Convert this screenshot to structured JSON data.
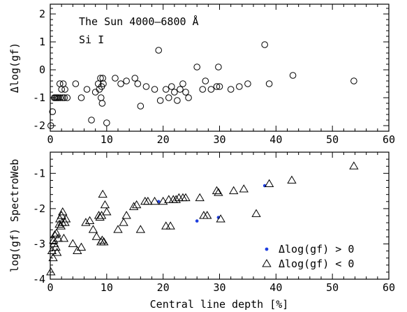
{
  "chart_data": [
    {
      "type": "scatter",
      "panel": "top",
      "annotations": [
        "The Sun  4000–6800 Å",
        "Si I"
      ],
      "xlabel": "",
      "ylabel": "Δlog(gf)",
      "xlim": [
        0,
        60
      ],
      "ylim": [
        -2.2,
        2.35
      ],
      "xticks": [
        0,
        10,
        20,
        30,
        40,
        50,
        60
      ],
      "yticks": [
        -2,
        -1,
        0,
        1,
        2
      ],
      "marker": "open-circle",
      "color": "#000000",
      "points": [
        [
          0.1,
          -2.0
        ],
        [
          0.4,
          -1.5
        ],
        [
          0.7,
          -1.0
        ],
        [
          0.9,
          -1.0
        ],
        [
          1.1,
          -1.0
        ],
        [
          1.3,
          -1.0
        ],
        [
          1.5,
          -1.0
        ],
        [
          1.7,
          -0.5
        ],
        [
          1.8,
          -1.0
        ],
        [
          2.0,
          -0.7
        ],
        [
          2.2,
          -1.0
        ],
        [
          2.3,
          -0.5
        ],
        [
          2.5,
          -1.0
        ],
        [
          2.6,
          -0.7
        ],
        [
          3.0,
          -1.0
        ],
        [
          4.5,
          -0.5
        ],
        [
          5.5,
          -1.0
        ],
        [
          6.5,
          -0.7
        ],
        [
          7.3,
          -1.8
        ],
        [
          8.0,
          -0.8
        ],
        [
          8.5,
          -0.5
        ],
        [
          8.7,
          -0.7
        ],
        [
          8.9,
          -0.3
        ],
        [
          9.0,
          -1.0
        ],
        [
          9.1,
          -0.6
        ],
        [
          9.2,
          -1.2
        ],
        [
          9.3,
          -0.3
        ],
        [
          9.4,
          -0.5
        ],
        [
          10.0,
          -1.9
        ],
        [
          11.5,
          -0.3
        ],
        [
          12.5,
          -0.5
        ],
        [
          13.5,
          -0.4
        ],
        [
          15.0,
          -0.3
        ],
        [
          15.5,
          -0.5
        ],
        [
          16.0,
          -1.3
        ],
        [
          17.0,
          -0.6
        ],
        [
          18.5,
          -0.7
        ],
        [
          19.2,
          0.7
        ],
        [
          19.5,
          -1.1
        ],
        [
          20.5,
          -0.7
        ],
        [
          21.0,
          -1.0
        ],
        [
          21.5,
          -0.6
        ],
        [
          22.0,
          -0.8
        ],
        [
          22.5,
          -1.1
        ],
        [
          23.0,
          -0.7
        ],
        [
          24.0,
          -0.8
        ],
        [
          24.5,
          -1.0
        ],
        [
          23.5,
          -0.5
        ],
        [
          26.0,
          0.1
        ],
        [
          27.0,
          -0.7
        ],
        [
          27.5,
          -0.4
        ],
        [
          28.5,
          -0.7
        ],
        [
          29.5,
          -0.6
        ],
        [
          29.8,
          0.1
        ],
        [
          30.0,
          -0.6
        ],
        [
          32.0,
          -0.7
        ],
        [
          33.5,
          -0.6
        ],
        [
          35.0,
          -0.5
        ],
        [
          38.0,
          0.9
        ],
        [
          38.8,
          -0.5
        ],
        [
          43.0,
          -0.2
        ],
        [
          53.8,
          -0.4
        ]
      ]
    },
    {
      "type": "scatter",
      "panel": "bottom",
      "xlabel": "Central line depth [%]",
      "ylabel": "log(gf) SpectroWeb",
      "xlim": [
        0,
        60
      ],
      "ylim": [
        -4.0,
        -0.4
      ],
      "xticks": [
        0,
        10,
        20,
        30,
        40,
        50,
        60
      ],
      "yticks": [
        -4,
        -3,
        -2,
        -1
      ],
      "legend_position": "bottom-right",
      "series": [
        {
          "name": "Δlog(gf) > 0",
          "marker": "filled-dot",
          "color": "#1f3fe0",
          "points": [
            [
              19.2,
              -1.8
            ],
            [
              26.0,
              -2.35
            ],
            [
              29.8,
              -2.25
            ],
            [
              38.0,
              -1.35
            ]
          ]
        },
        {
          "name": "Δlog(gf) < 0",
          "marker": "open-triangle",
          "color": "#000000",
          "points": [
            [
              0.1,
              -3.8
            ],
            [
              0.3,
              -3.2
            ],
            [
              0.5,
              -3.4
            ],
            [
              0.6,
              -2.9
            ],
            [
              0.7,
              -3.0
            ],
            [
              0.8,
              -2.75
            ],
            [
              1.0,
              -3.1
            ],
            [
              1.1,
              -2.7
            ],
            [
              1.2,
              -3.25
            ],
            [
              1.4,
              -2.85
            ],
            [
              1.6,
              -2.45
            ],
            [
              1.7,
              -2.3
            ],
            [
              1.9,
              -2.5
            ],
            [
              2.0,
              -2.2
            ],
            [
              2.1,
              -2.4
            ],
            [
              2.2,
              -2.1
            ],
            [
              2.4,
              -2.85
            ],
            [
              2.6,
              -2.4
            ],
            [
              2.8,
              -2.3
            ],
            [
              4.0,
              -3.0
            ],
            [
              4.8,
              -3.2
            ],
            [
              5.5,
              -3.1
            ],
            [
              6.3,
              -2.4
            ],
            [
              7.0,
              -2.35
            ],
            [
              7.6,
              -2.6
            ],
            [
              8.2,
              -2.8
            ],
            [
              8.6,
              -2.2
            ],
            [
              8.8,
              -2.25
            ],
            [
              9.0,
              -2.95
            ],
            [
              9.1,
              -2.2
            ],
            [
              9.2,
              -2.9
            ],
            [
              9.3,
              -1.6
            ],
            [
              9.5,
              -2.95
            ],
            [
              9.7,
              -1.9
            ],
            [
              10.0,
              -2.1
            ],
            [
              12.0,
              -2.6
            ],
            [
              13.0,
              -2.4
            ],
            [
              13.5,
              -2.2
            ],
            [
              14.8,
              -1.95
            ],
            [
              15.3,
              -1.9
            ],
            [
              16.0,
              -2.6
            ],
            [
              16.8,
              -1.8
            ],
            [
              17.3,
              -1.8
            ],
            [
              18.5,
              -1.8
            ],
            [
              20.0,
              -1.8
            ],
            [
              20.5,
              -2.5
            ],
            [
              21.0,
              -1.75
            ],
            [
              21.3,
              -2.5
            ],
            [
              21.8,
              -1.75
            ],
            [
              22.3,
              -1.75
            ],
            [
              22.8,
              -1.7
            ],
            [
              23.5,
              -1.7
            ],
            [
              24.0,
              -1.7
            ],
            [
              26.5,
              -1.7
            ],
            [
              27.2,
              -2.2
            ],
            [
              27.8,
              -2.2
            ],
            [
              29.5,
              -1.5
            ],
            [
              29.8,
              -1.55
            ],
            [
              30.2,
              -2.3
            ],
            [
              32.5,
              -1.5
            ],
            [
              34.3,
              -1.45
            ],
            [
              36.5,
              -2.15
            ],
            [
              38.8,
              -1.3
            ],
            [
              42.8,
              -1.2
            ],
            [
              53.8,
              -0.8
            ]
          ]
        }
      ]
    }
  ]
}
